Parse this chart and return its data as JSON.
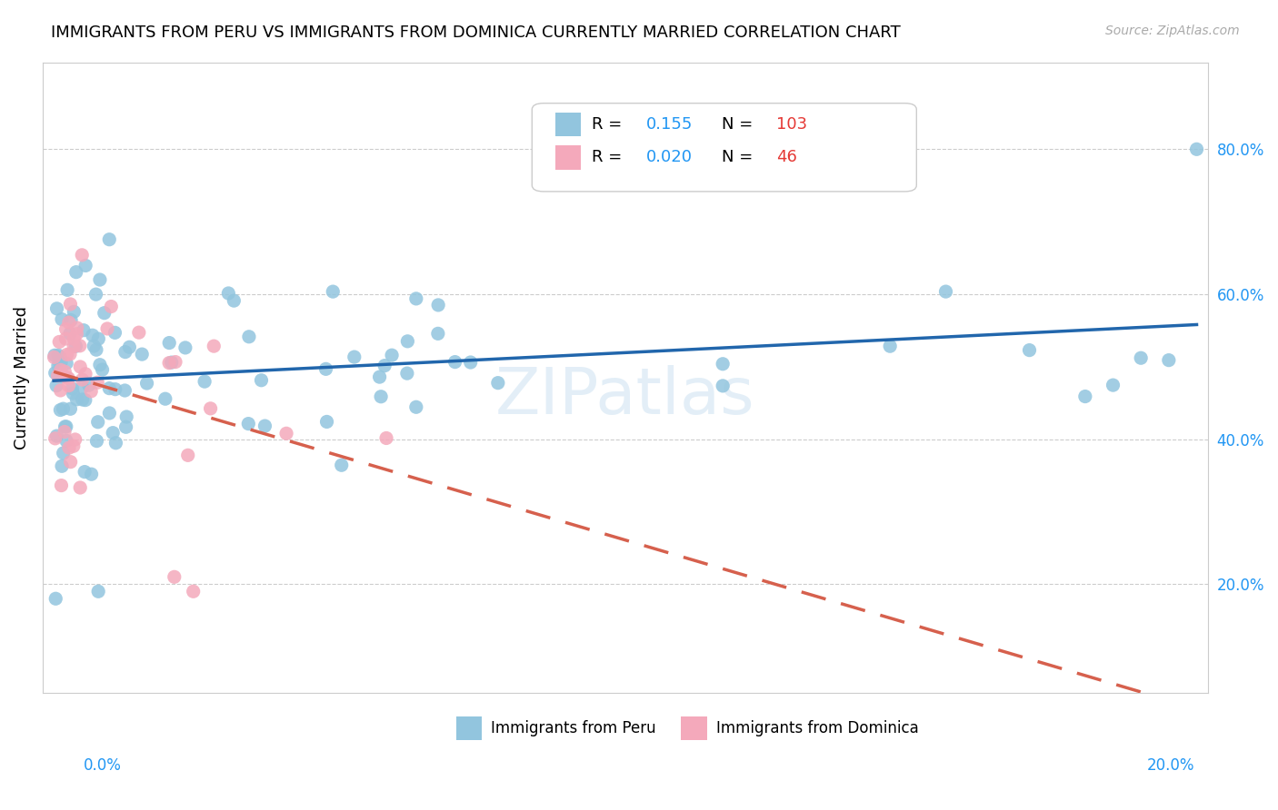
{
  "title": "IMMIGRANTS FROM PERU VS IMMIGRANTS FROM DOMINICA CURRENTLY MARRIED CORRELATION CHART",
  "source": "Source: ZipAtlas.com",
  "ylabel": "Currently Married",
  "legend_peru_R": "0.155",
  "legend_peru_N": "103",
  "legend_dom_R": "0.020",
  "legend_dom_N": "46",
  "blue_color": "#92C5DE",
  "pink_color": "#F4A9BB",
  "blue_line_color": "#2166AC",
  "pink_line_color": "#D6604D",
  "watermark": "ZIPatlas",
  "right_yticks": [
    0.8,
    0.6,
    0.4,
    0.2
  ],
  "right_yticklabels": [
    "80.0%",
    "60.0%",
    "40.0%",
    "20.0%"
  ],
  "xlim": [
    -0.002,
    0.207
  ],
  "ylim": [
    0.05,
    0.92
  ]
}
